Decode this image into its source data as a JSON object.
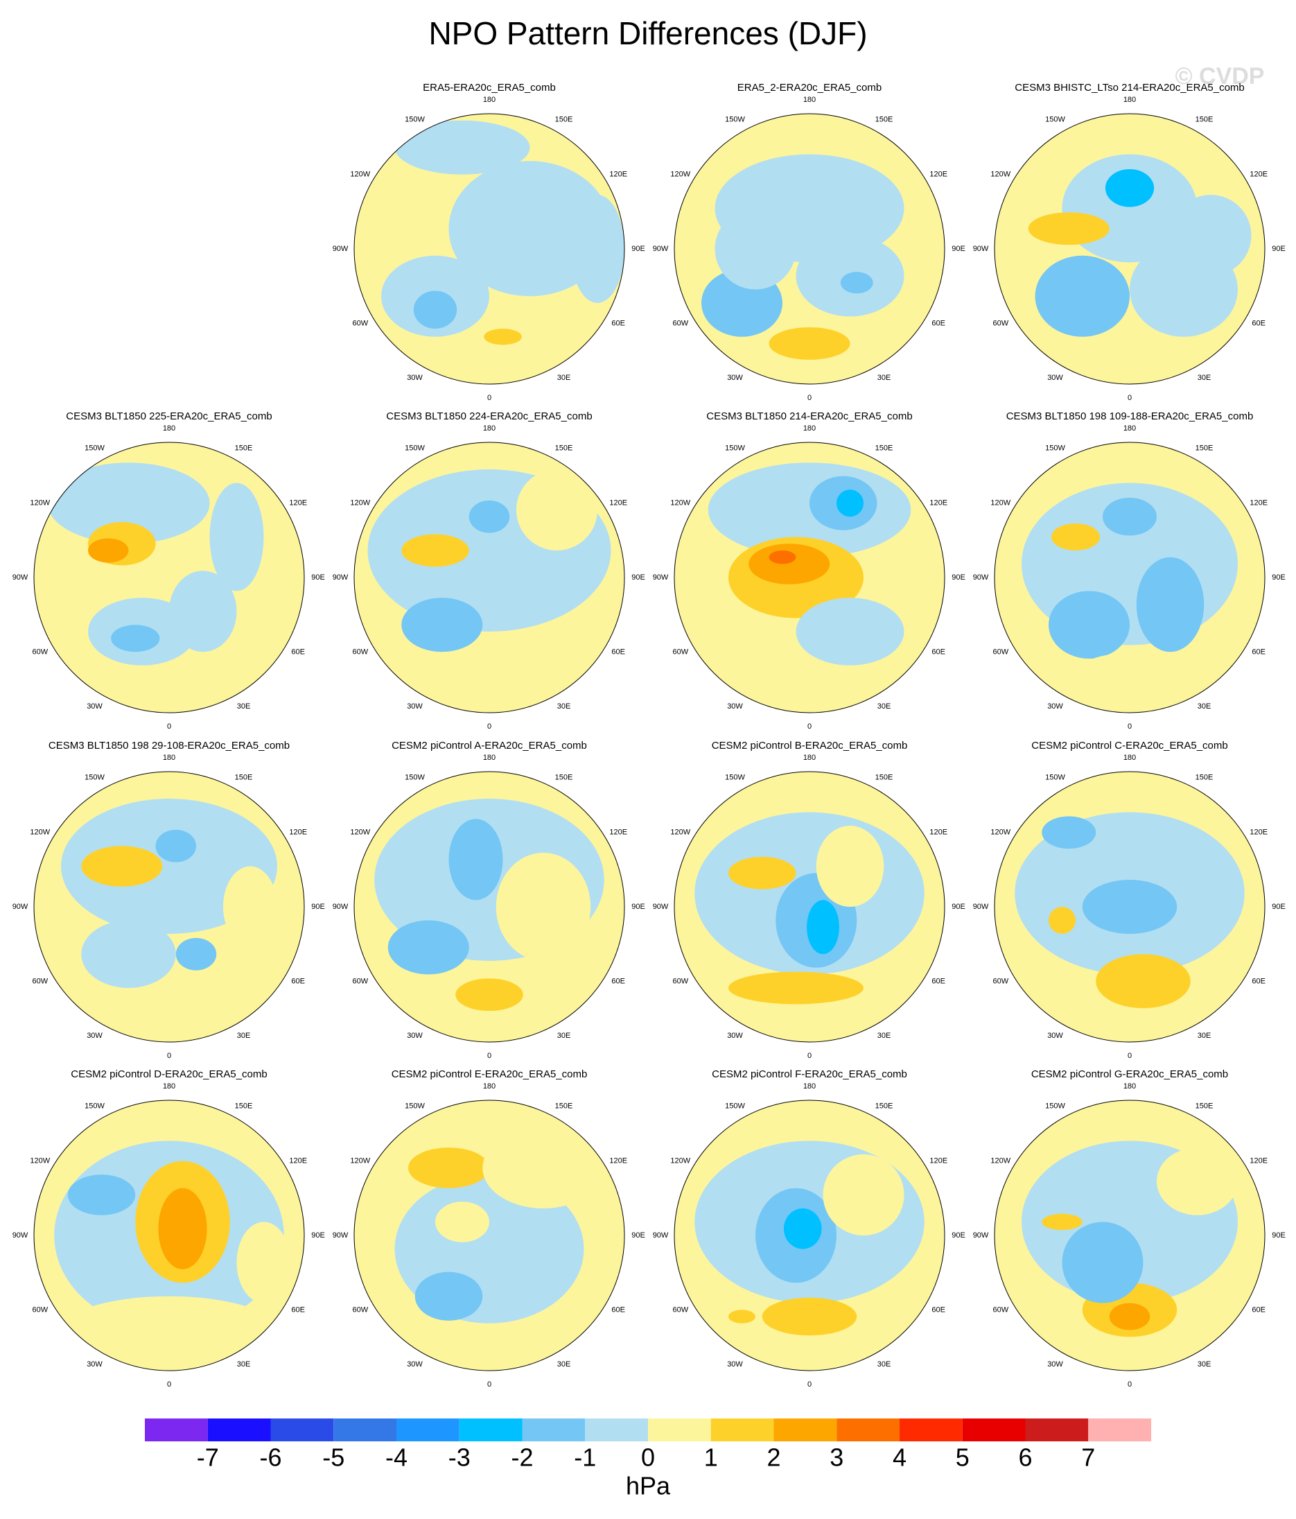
{
  "title": "NPO Pattern Differences (DJF)",
  "watermark": "© CVDP",
  "panels": [
    {
      "title": "ERA5-ERA20c_ERA5_comb"
    },
    {
      "title": "ERA5_2-ERA20c_ERA5_comb"
    },
    {
      "title": "CESM3 BHISTC_LTso 214-ERA20c_ERA5_comb"
    },
    {
      "title": "CESM3 BLT1850 225-ERA20c_ERA5_comb"
    },
    {
      "title": "CESM3 BLT1850 224-ERA20c_ERA5_comb"
    },
    {
      "title": "CESM3 BLT1850 214-ERA20c_ERA5_comb"
    },
    {
      "title": "CESM3 BLT1850 198 109-188-ERA20c_ERA5_comb"
    },
    {
      "title": "CESM3 BLT1850 198 29-108-ERA20c_ERA5_comb"
    },
    {
      "title": "CESM2 piControl A-ERA20c_ERA5_comb"
    },
    {
      "title": "CESM2 piControl B-ERA20c_ERA5_comb"
    },
    {
      "title": "CESM2 piControl C-ERA20c_ERA5_comb"
    },
    {
      "title": "CESM2 piControl D-ERA20c_ERA5_comb"
    },
    {
      "title": "CESM2 piControl E-ERA20c_ERA5_comb"
    },
    {
      "title": "CESM2 piControl F-ERA20c_ERA5_comb"
    },
    {
      "title": "CESM2 piControl G-ERA20c_ERA5_comb"
    }
  ],
  "longitude_labels": [
    "0",
    "30E",
    "60E",
    "90E",
    "120E",
    "150E",
    "180",
    "150W",
    "120W",
    "90W",
    "60W",
    "30W"
  ],
  "colorbar": {
    "ticks": [
      -7,
      -6,
      -5,
      -4,
      -3,
      -2,
      -1,
      0,
      1,
      2,
      3,
      4,
      5,
      6,
      7
    ],
    "colors": [
      "#7d28f0",
      "#1a10ff",
      "#2a4be8",
      "#3478e8",
      "#1e96ff",
      "#00c0ff",
      "#74c6f4",
      "#b2def2",
      "#fdf59c",
      "#fdd12a",
      "#fda600",
      "#fd7000",
      "#ff2a00",
      "#e80000",
      "#cd1c1c",
      "#ffb0b0"
    ],
    "unit": "hPa"
  }
}
